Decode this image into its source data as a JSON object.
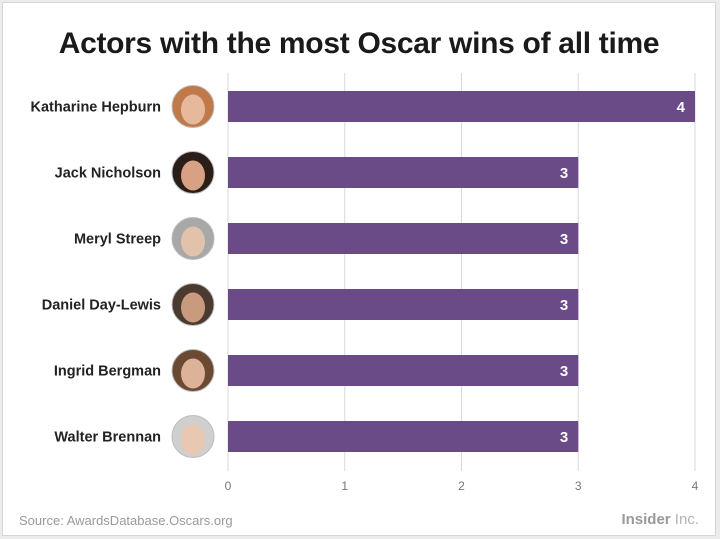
{
  "title": "Actors with the most Oscar wins of all time",
  "source": "Source: AwardsDatabase.Oscars.org",
  "brand": {
    "name": "Insider",
    "suffix": " Inc."
  },
  "colors": {
    "bar": "#6b4a88",
    "grid": "#d9d9d9",
    "text": "#222222"
  },
  "chart_data": {
    "type": "bar",
    "orientation": "horizontal",
    "title": "Actors with the most Oscar wins of all time",
    "categories": [
      "Katharine Hepburn",
      "Jack Nicholson",
      "Meryl Streep",
      "Daniel Day-Lewis",
      "Ingrid Bergman",
      "Walter Brennan"
    ],
    "values": [
      4,
      3,
      3,
      3,
      3,
      3
    ],
    "xlim": [
      0,
      4
    ],
    "xticks": [
      0,
      1,
      2,
      3,
      4
    ],
    "grid": true,
    "data_labels": true,
    "legend": "none"
  }
}
